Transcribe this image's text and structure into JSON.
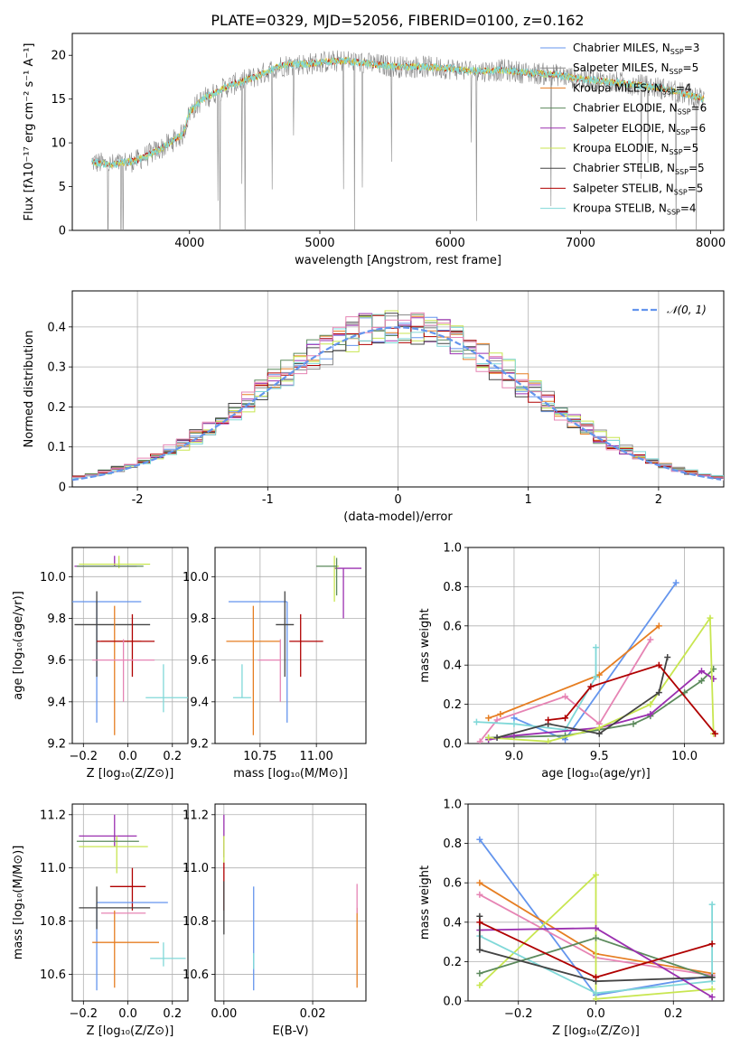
{
  "title": "PLATE=0329, MJD=52056, FIBERID=0100, z=0.162",
  "colors": [
    "#6495ed",
    "#e67e22",
    "#888888",
    "#5c8a5c",
    "#9b30b0",
    "#c8e650",
    "#444444",
    "#b00000",
    "#80d8d8",
    "#e684b4"
  ],
  "chart_data": [
    {
      "id": "spectrum",
      "type": "line",
      "xlabel": "wavelength [Angstrom, rest frame]",
      "ylabel": "Flux [fλ10⁻¹⁷ erg cm⁻² s⁻¹ A⁻¹]",
      "xlim": [
        3100,
        8100
      ],
      "ylim": [
        0,
        22.5
      ],
      "xticks": [
        4000,
        5000,
        6000,
        7000,
        8000
      ],
      "yticks": [
        0,
        5,
        10,
        15,
        20
      ],
      "grid": false,
      "legend_position": "top-right",
      "legend": [
        {
          "label": "Chabrier MILES, N",
          "sub": "SSP",
          "tail": "=3",
          "color": "#6495ed"
        },
        {
          "label": "Salpeter MILES, N",
          "sub": "SSP",
          "tail": "=5",
          "color": "#888888"
        },
        {
          "label": "Kroupa MILES, N",
          "sub": "SSP",
          "tail": "=4",
          "color": "#e67e22"
        },
        {
          "label": "Chabrier ELODIE, N",
          "sub": "SSP",
          "tail": "=6",
          "color": "#5c8a5c"
        },
        {
          "label": "Salpeter ELODIE, N",
          "sub": "SSP",
          "tail": "=6",
          "color": "#9b30b0"
        },
        {
          "label": "Kroupa ELODIE, N",
          "sub": "SSP",
          "tail": "=5",
          "color": "#c8e650"
        },
        {
          "label": "Chabrier STELIB, N",
          "sub": "SSP",
          "tail": "=5",
          "color": "#444444"
        },
        {
          "label": "Salpeter STELIB, N",
          "sub": "SSP",
          "tail": "=5",
          "color": "#b00000"
        },
        {
          "label": "Kroupa STELIB, N",
          "sub": "SSP",
          "tail": "=4",
          "color": "#80d8d8"
        }
      ],
      "continuum": {
        "x": [
          3250,
          3400,
          3600,
          3800,
          3950,
          4000,
          4100,
          4300,
          4500,
          4700,
          4800,
          4900,
          5000,
          5200,
          5400,
          5600,
          5800,
          6000,
          6200,
          6400,
          6600,
          6800,
          7000,
          7200,
          7400,
          7600,
          7800,
          7950
        ],
        "y": [
          7.8,
          7.5,
          8.0,
          9.5,
          11.0,
          13.5,
          15.0,
          16.5,
          17.5,
          18.8,
          19.0,
          19.0,
          19.2,
          19.4,
          19.0,
          18.7,
          18.7,
          18.5,
          18.2,
          18.3,
          18.0,
          17.8,
          17.3,
          17.0,
          16.7,
          16.3,
          15.6,
          15.0
        ]
      }
    },
    {
      "id": "residuals",
      "type": "step",
      "xlabel": "(data-model)/error",
      "ylabel": "Normed distribution",
      "xlim": [
        -2.5,
        2.5
      ],
      "ylim": [
        0,
        0.49
      ],
      "xticks": [
        -2,
        -1,
        0,
        1,
        2
      ],
      "yticks": [
        0.0,
        0.1,
        0.2,
        0.3,
        0.4
      ],
      "grid": true,
      "legend_position": "top-right",
      "legend_label": "𝒩(0, 1)",
      "gaussian": {
        "mean": 0,
        "sigma": 1,
        "color": "#6495ed"
      },
      "bin_width": 0.1
    },
    {
      "id": "age-vs-Z",
      "type": "errorbar",
      "xlabel": "Z [log₁₀(Z/Z⊙)]",
      "ylabel": "age  [log₁₀(age/yr)]",
      "xlim": [
        -0.25,
        0.27
      ],
      "ylim": [
        9.2,
        10.14
      ],
      "xticks": [
        -0.2,
        0.0,
        0.2
      ],
      "xticklabels": [
        "−0.2",
        "0.0",
        "0.2"
      ],
      "yticks": [
        9.2,
        9.4,
        9.6,
        9.8,
        10.0
      ],
      "yticklabels": [
        "9.2",
        "9.4",
        "9.6",
        "9.8",
        "10.0"
      ],
      "grid": true,
      "points": [
        {
          "x": -0.14,
          "xerr": [
            0.16,
            0.2
          ],
          "y": 9.88,
          "yerr": [
            0.58,
            0.0
          ],
          "color": "#6495ed"
        },
        {
          "x": -0.06,
          "xerr": [
            0.18,
            0.1
          ],
          "y": 10.05,
          "yerr": [
            0.0,
            0.05
          ],
          "color": "#9b30b0"
        },
        {
          "x": -0.04,
          "xerr": [
            0.18,
            0.14
          ],
          "y": 10.06,
          "yerr": [
            0.02,
            0.04
          ],
          "color": "#c8e650"
        },
        {
          "x": -0.03,
          "xerr": [
            0.2,
            0.1
          ],
          "y": 10.05,
          "yerr": [
            0.0,
            0.0
          ],
          "color": "#5c8a5c"
        },
        {
          "x": -0.14,
          "xerr": [
            0.1,
            0.24
          ],
          "y": 9.77,
          "yerr": [
            0.25,
            0.16
          ],
          "color": "#444444"
        },
        {
          "x": -0.06,
          "xerr": [
            0.06,
            0.12
          ],
          "y": 9.69,
          "yerr": [
            0.45,
            0.17
          ],
          "color": "#e67e22"
        },
        {
          "x": 0.02,
          "xerr": [
            0.16,
            0.1
          ],
          "y": 9.69,
          "yerr": [
            0.17,
            0.13
          ],
          "color": "#b00000"
        },
        {
          "x": -0.02,
          "xerr": [
            0.14,
            0.14
          ],
          "y": 9.6,
          "yerr": [
            0.2,
            0.1
          ],
          "color": "#e684b4"
        },
        {
          "x": 0.16,
          "xerr": [
            0.08,
            0.12
          ],
          "y": 9.42,
          "yerr": [
            0.07,
            0.16
          ],
          "color": "#80d8d8"
        }
      ]
    },
    {
      "id": "age-vs-mass",
      "type": "errorbar",
      "xlabel": "mass [log₁₀(M/M⊙)]",
      "ylabel": "",
      "xlim": [
        10.55,
        11.22
      ],
      "ylim": [
        9.2,
        10.14
      ],
      "xticks": [
        10.75,
        11.0
      ],
      "xticklabels": [
        "10.75",
        "11.00"
      ],
      "yticks": [
        9.2,
        9.4,
        9.6,
        9.8,
        10.0
      ],
      "yticklabels": [
        "9.2",
        "9.4",
        "9.6",
        "9.8",
        "10.0"
      ],
      "grid": true,
      "points": [
        {
          "x": 10.87,
          "xerr": [
            0.26,
            0.0
          ],
          "y": 9.88,
          "yerr": [
            0.58,
            0.0
          ],
          "color": "#6495ed"
        },
        {
          "x": 11.12,
          "xerr": [
            0.04,
            0.08
          ],
          "y": 10.04,
          "yerr": [
            0.24,
            0.0
          ],
          "color": "#9b30b0"
        },
        {
          "x": 11.08,
          "xerr": [
            0.0,
            0.02
          ],
          "y": 10.05,
          "yerr": [
            0.17,
            0.05
          ],
          "color": "#c8e650"
        },
        {
          "x": 11.09,
          "xerr": [
            0.09,
            0.0
          ],
          "y": 10.05,
          "yerr": [
            0.14,
            0.04
          ],
          "color": "#5c8a5c"
        },
        {
          "x": 10.86,
          "xerr": [
            0.04,
            0.04
          ],
          "y": 9.77,
          "yerr": [
            0.25,
            0.16
          ],
          "color": "#444444"
        },
        {
          "x": 10.72,
          "xerr": [
            0.12,
            0.12
          ],
          "y": 9.69,
          "yerr": [
            0.45,
            0.17
          ],
          "color": "#e67e22"
        },
        {
          "x": 10.93,
          "xerr": [
            0.05,
            0.1
          ],
          "y": 9.69,
          "yerr": [
            0.17,
            0.13
          ],
          "color": "#b00000"
        },
        {
          "x": 10.84,
          "xerr": [
            0.1,
            0.0
          ],
          "y": 9.6,
          "yerr": [
            0.2,
            0.1
          ],
          "color": "#e684b4"
        },
        {
          "x": 10.67,
          "xerr": [
            0.04,
            0.04
          ],
          "y": 9.42,
          "yerr": [
            0.0,
            0.16
          ],
          "color": "#80d8d8"
        }
      ]
    },
    {
      "id": "mass-weight-vs-age",
      "type": "line",
      "xlabel": "age  [log₁₀(age/yr)]",
      "ylabel": "mass weight",
      "xlim": [
        8.73,
        10.23
      ],
      "ylim": [
        0,
        1.0
      ],
      "xticks": [
        9.0,
        9.5,
        10.0
      ],
      "xticklabels": [
        "9.0",
        "9.5",
        "10.0"
      ],
      "yticks": [
        0.0,
        0.2,
        0.4,
        0.6,
        0.8,
        1.0
      ],
      "yticklabels": [
        "0.0",
        "0.2",
        "0.4",
        "0.6",
        "0.8",
        "1.0"
      ],
      "grid": true,
      "series": [
        {
          "color": "#6495ed",
          "x": [
            9.0,
            9.3,
            9.95
          ],
          "y": [
            0.13,
            0.02,
            0.82
          ]
        },
        {
          "color": "#e67e22",
          "x": [
            8.85,
            8.92,
            9.5,
            9.85
          ],
          "y": [
            0.13,
            0.15,
            0.35,
            0.6
          ]
        },
        {
          "color": "#e684b4",
          "x": [
            8.8,
            8.9,
            9.3,
            9.5,
            9.8
          ],
          "y": [
            0.01,
            0.12,
            0.24,
            0.1,
            0.53
          ]
        },
        {
          "color": "#80d8d8",
          "x": [
            8.78,
            9.0,
            9.3,
            9.48,
            9.48
          ],
          "y": [
            0.11,
            0.1,
            0.07,
            0.34,
            0.49
          ]
        },
        {
          "color": "#5c8a5c",
          "x": [
            8.85,
            9.3,
            9.7,
            9.8,
            10.0,
            10.1,
            10.17
          ],
          "y": [
            0.03,
            0.04,
            0.1,
            0.14,
            0.26,
            0.32,
            0.38
          ]
        },
        {
          "color": "#9b30b0",
          "x": [
            8.85,
            9.0,
            9.5,
            9.8,
            10.1,
            10.17
          ],
          "y": [
            0.02,
            0.04,
            0.08,
            0.15,
            0.37,
            0.33
          ]
        },
        {
          "color": "#c8e650",
          "x": [
            8.85,
            9.2,
            9.5,
            9.8,
            10.15,
            10.17
          ],
          "y": [
            0.03,
            0.01,
            0.08,
            0.2,
            0.64,
            0.05
          ]
        },
        {
          "color": "#444444",
          "x": [
            8.9,
            9.2,
            9.5,
            9.85,
            9.9
          ],
          "y": [
            0.03,
            0.1,
            0.05,
            0.26,
            0.44
          ]
        },
        {
          "color": "#b00000",
          "x": [
            9.2,
            9.3,
            9.45,
            9.85,
            10.18
          ],
          "y": [
            0.12,
            0.13,
            0.29,
            0.4,
            0.05
          ]
        }
      ]
    },
    {
      "id": "mass-vs-Z",
      "type": "errorbar",
      "xlabel": "Z [log₁₀(Z/Z⊙)]",
      "ylabel": "mass [log₁₀(M/M⊙)]",
      "xlim": [
        -0.25,
        0.27
      ],
      "ylim": [
        10.5,
        11.24
      ],
      "xticks": [
        -0.2,
        0.0,
        0.2
      ],
      "xticklabels": [
        "−0.2",
        "0.0",
        "0.2"
      ],
      "yticks": [
        10.6,
        10.8,
        11.0,
        11.2
      ],
      "yticklabels": [
        "10.6",
        "10.8",
        "11.0",
        "11.2"
      ],
      "grid": true,
      "points": [
        {
          "x": -0.06,
          "xerr": [
            0.16,
            0.1
          ],
          "y": 11.12,
          "yerr": [
            0.04,
            0.08
          ],
          "color": "#9b30b0"
        },
        {
          "x": -0.05,
          "xerr": [
            0.17,
            0.14
          ],
          "y": 11.08,
          "yerr": [
            0.1,
            0.04
          ],
          "color": "#c8e650"
        },
        {
          "x": -0.03,
          "xerr": [
            0.2,
            0.08
          ],
          "y": 11.1,
          "yerr": [
            0.0,
            0.0
          ],
          "color": "#5c8a5c"
        },
        {
          "x": 0.02,
          "xerr": [
            0.1,
            0.06
          ],
          "y": 10.93,
          "yerr": [
            0.09,
            0.07
          ],
          "color": "#b00000"
        },
        {
          "x": -0.14,
          "xerr": [
            0.0,
            0.32
          ],
          "y": 10.87,
          "yerr": [
            0.33,
            0.0
          ],
          "color": "#6495ed"
        },
        {
          "x": -0.14,
          "xerr": [
            0.08,
            0.24
          ],
          "y": 10.85,
          "yerr": [
            0.08,
            0.08
          ],
          "color": "#444444"
        },
        {
          "x": -0.06,
          "xerr": [
            0.06,
            0.14
          ],
          "y": 10.83,
          "yerr": [
            0.0,
            0.0
          ],
          "color": "#e684b4"
        },
        {
          "x": -0.06,
          "xerr": [
            0.1,
            0.2
          ],
          "y": 10.72,
          "yerr": [
            0.17,
            0.12
          ],
          "color": "#e67e22"
        },
        {
          "x": 0.16,
          "xerr": [
            0.06,
            0.1
          ],
          "y": 10.66,
          "yerr": [
            0.03,
            0.06
          ],
          "color": "#80d8d8"
        }
      ]
    },
    {
      "id": "mass-vs-EBV",
      "type": "errorbar",
      "xlabel": "E(B-V)",
      "ylabel": "",
      "xlim": [
        -0.002,
        0.032
      ],
      "ylim": [
        10.5,
        11.24
      ],
      "xticks": [
        0.0,
        0.02
      ],
      "xticklabels": [
        "0.00",
        "0.02"
      ],
      "yticks": [
        10.6,
        10.8,
        11.0,
        11.2
      ],
      "yticklabels": [
        "10.6",
        "10.8",
        "11.0",
        "11.2"
      ],
      "grid": true,
      "points": [
        {
          "x": 0.0,
          "xerr": [
            0,
            0
          ],
          "y": 11.12,
          "yerr": [
            0.08,
            0.08
          ],
          "color": "#9b30b0"
        },
        {
          "x": 0.0,
          "xerr": [
            0,
            0
          ],
          "y": 11.08,
          "yerr": [
            0.06,
            0.04
          ],
          "color": "#c8e650"
        },
        {
          "x": 0.0,
          "xerr": [
            0,
            0
          ],
          "y": 10.93,
          "yerr": [
            0.09,
            0.09
          ],
          "color": "#b00000"
        },
        {
          "x": 0.0,
          "xerr": [
            0,
            0
          ],
          "y": 10.85,
          "yerr": [
            0.1,
            0.1
          ],
          "color": "#444444"
        },
        {
          "x": 0.0067,
          "xerr": [
            0,
            0
          ],
          "y": 10.8,
          "yerr": [
            0.26,
            0.13
          ],
          "color": "#6495ed"
        },
        {
          "x": 0.0067,
          "xerr": [
            0,
            0
          ],
          "y": 10.64,
          "yerr": [
            0.02,
            0.04
          ],
          "color": "#80d8d8"
        },
        {
          "x": 0.03,
          "xerr": [
            0,
            0
          ],
          "y": 10.7,
          "yerr": [
            0.15,
            0.15
          ],
          "color": "#e67e22"
        },
        {
          "x": 0.03,
          "xerr": [
            0,
            0
          ],
          "y": 10.83,
          "yerr": [
            0.0,
            0.11
          ],
          "color": "#e684b4"
        }
      ]
    },
    {
      "id": "mass-weight-vs-Z",
      "type": "line",
      "xlabel": "Z [log₁₀(Z/Z⊙)]",
      "ylabel": "mass weight",
      "xlim": [
        -0.33,
        0.33
      ],
      "ylim": [
        0,
        1.0
      ],
      "xticks": [
        -0.2,
        0.0,
        0.2
      ],
      "xticklabels": [
        "−0.2",
        "0.0",
        "0.2"
      ],
      "yticks": [
        0.0,
        0.2,
        0.4,
        0.6,
        0.8,
        1.0
      ],
      "yticklabels": [
        "0.0",
        "0.2",
        "0.4",
        "0.6",
        "0.8",
        "1.0"
      ],
      "grid": true,
      "series": [
        {
          "color": "#6495ed",
          "x": [
            -0.3,
            0.0,
            0.3
          ],
          "y": [
            0.82,
            0.03,
            0.13
          ]
        },
        {
          "color": "#e67e22",
          "x": [
            -0.3,
            0.0,
            0.3
          ],
          "y": [
            0.6,
            0.24,
            0.14
          ]
        },
        {
          "color": "#e684b4",
          "x": [
            -0.3,
            0.0,
            0.3
          ],
          "y": [
            0.54,
            0.22,
            0.13
          ]
        },
        {
          "color": "#c8e650",
          "x": [
            -0.3,
            0.0,
            0.0,
            0.3
          ],
          "y": [
            0.08,
            0.64,
            0.01,
            0.06
          ]
        },
        {
          "color": "#80d8d8",
          "x": [
            -0.3,
            0.0,
            0.3,
            0.3
          ],
          "y": [
            0.33,
            0.04,
            0.1,
            0.49
          ]
        },
        {
          "color": "#5c8a5c",
          "x": [
            -0.3,
            0.0,
            0.3
          ],
          "y": [
            0.14,
            0.32,
            0.12
          ]
        },
        {
          "color": "#9b30b0",
          "x": [
            -0.3,
            0.0,
            0.3
          ],
          "y": [
            0.36,
            0.37,
            0.02
          ]
        },
        {
          "color": "#444444",
          "x": [
            -0.3,
            -0.3,
            0.0,
            0.3
          ],
          "y": [
            0.43,
            0.26,
            0.1,
            0.12
          ]
        },
        {
          "color": "#b00000",
          "x": [
            -0.3,
            0.0,
            0.3
          ],
          "y": [
            0.4,
            0.12,
            0.29
          ]
        }
      ]
    }
  ]
}
